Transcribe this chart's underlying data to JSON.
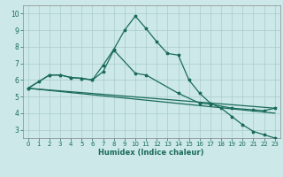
{
  "xlabel": "Humidex (Indice chaleur)",
  "bg_color": "#cce8e8",
  "grid_color": "#aacccc",
  "line_color": "#1a6b5a",
  "xlim": [
    -0.5,
    23.5
  ],
  "ylim": [
    2.5,
    10.5
  ],
  "xticks": [
    0,
    1,
    2,
    3,
    4,
    5,
    6,
    7,
    8,
    9,
    10,
    11,
    12,
    13,
    14,
    15,
    16,
    17,
    18,
    19,
    20,
    21,
    22,
    23
  ],
  "yticks": [
    3,
    4,
    5,
    6,
    7,
    8,
    9,
    10
  ],
  "series1_x": [
    0,
    1,
    2,
    3,
    4,
    5,
    6,
    7,
    8,
    9,
    10,
    11,
    12,
    13,
    14,
    15,
    16,
    17,
    18,
    19,
    20,
    21,
    22,
    23
  ],
  "series1_y": [
    5.5,
    5.9,
    6.3,
    6.3,
    6.15,
    6.1,
    6.0,
    6.9,
    7.85,
    9.0,
    9.85,
    9.1,
    8.3,
    7.6,
    7.5,
    6.0,
    5.2,
    4.6,
    4.3,
    3.8,
    3.3,
    2.9,
    2.7,
    2.5
  ],
  "series2_x": [
    0,
    2,
    3,
    4,
    5,
    6,
    7,
    8,
    10,
    11,
    14,
    16,
    17,
    19,
    21,
    22,
    23
  ],
  "series2_y": [
    5.5,
    6.3,
    6.3,
    6.15,
    6.1,
    6.0,
    6.5,
    7.8,
    6.4,
    6.3,
    5.2,
    4.6,
    4.55,
    4.3,
    4.2,
    4.15,
    4.3
  ],
  "series3_x": [
    0,
    23
  ],
  "series3_y": [
    5.5,
    4.3
  ],
  "series4_x": [
    0,
    23
  ],
  "series4_y": [
    5.5,
    4.0
  ]
}
